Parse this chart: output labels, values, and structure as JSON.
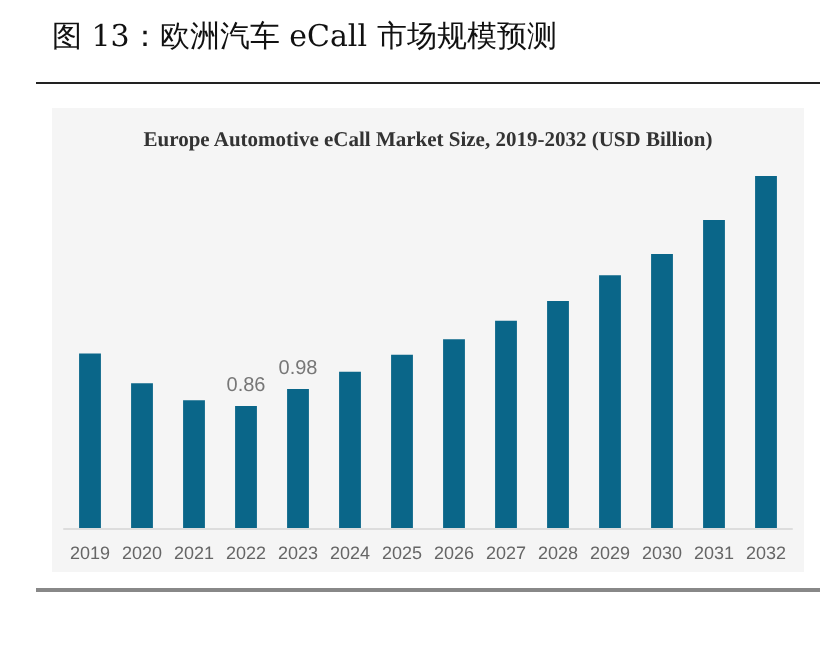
{
  "chart_data": {
    "type": "bar",
    "title": "图 13：欧洲汽车 eCall 市场规模预测",
    "subtitle": "Europe Automotive eCall Market Size, 2019-2032 (USD Billion)",
    "categories": [
      "2019",
      "2020",
      "2021",
      "2022",
      "2023",
      "2024",
      "2025",
      "2026",
      "2027",
      "2028",
      "2029",
      "2030",
      "2031",
      "2032"
    ],
    "values": [
      1.23,
      1.02,
      0.9,
      0.86,
      0.98,
      1.1,
      1.22,
      1.33,
      1.46,
      1.6,
      1.78,
      1.93,
      2.17,
      2.48
    ],
    "value_labels": [
      null,
      null,
      null,
      "0.86",
      "0.98",
      null,
      null,
      null,
      null,
      null,
      null,
      null,
      null,
      null
    ],
    "color": "#0a6689"
  }
}
